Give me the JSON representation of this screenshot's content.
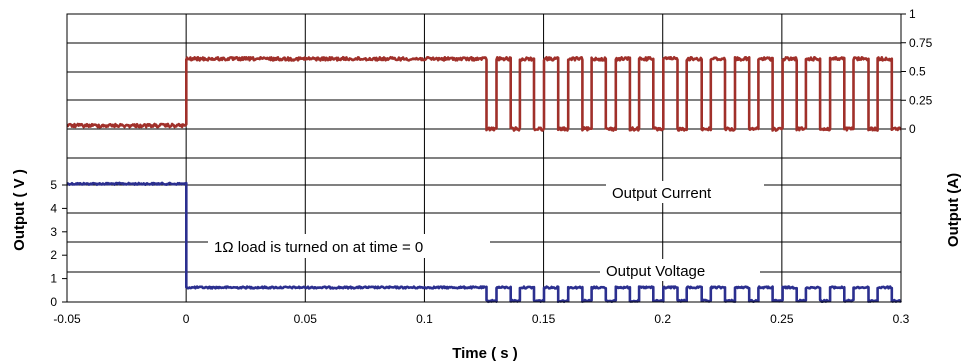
{
  "chart_data": {
    "type": "line",
    "xlabel": "Time ( s )",
    "ylabel_left": "Output ( V )",
    "ylabel_right": "Output (A)",
    "xlim": [
      -0.05,
      0.3
    ],
    "x_ticks": [
      "-0.05",
      "0",
      "0.05",
      "0.1",
      "0.15",
      "0.2",
      "0.25",
      "0.3"
    ],
    "y_left_range": [
      0,
      5
    ],
    "y_left_ticks": [
      "0",
      "1",
      "2",
      "3",
      "4",
      "5"
    ],
    "y_right_range": [
      0,
      1
    ],
    "y_right_ticks": [
      "0",
      "0.25",
      "0.5",
      "0.75",
      "1"
    ],
    "grid": true,
    "annotations": [
      {
        "text": "Output Current"
      },
      {
        "text": "1Ω load is turned on at time = 0"
      },
      {
        "text": "Output Voltage"
      }
    ],
    "series": [
      {
        "name": "Output Voltage",
        "axis": "left",
        "color": "#2b2f8f",
        "before_step_value": 5.05,
        "step_time": 0,
        "after_step_value": 0.62,
        "pulse_start": 0.12,
        "pulse_period": 0.01,
        "pulse_high_fraction": 0.6,
        "pulse_high": 0.62,
        "pulse_low": 0.05
      },
      {
        "name": "Output Current",
        "axis": "right",
        "color": "#a0302a",
        "before_step_value": 0.03,
        "step_time": 0,
        "after_step_value": 0.61,
        "pulse_start": 0.12,
        "pulse_period": 0.01,
        "pulse_high_fraction": 0.6,
        "pulse_high": 0.61,
        "pulse_low": 0.0
      }
    ]
  }
}
